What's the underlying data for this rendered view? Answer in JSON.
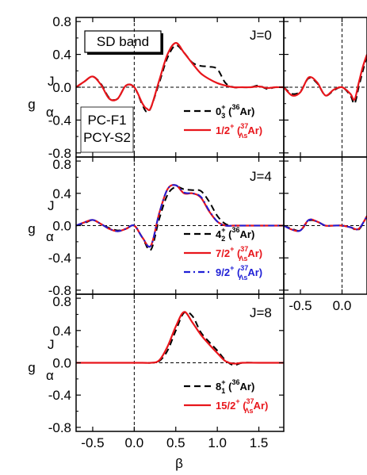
{
  "figure": {
    "ylabel_main": "g",
    "ylabel_sup": "J",
    "ylabel_sub": "α",
    "xlabel": "β",
    "colors": {
      "black": "#000000",
      "red": "#e8151b",
      "blue": "#1f1fd6"
    }
  },
  "left_ytick_labels": [
    "0.8",
    "0.4",
    "0.0",
    "-0.4",
    "-0.8"
  ],
  "bottom_xtick_labels": [
    "-0.5",
    "0.0",
    "0.5",
    "1.0",
    "1.5"
  ],
  "right_xtick_labels": [
    "-0.5",
    "0.0"
  ],
  "panels": {
    "J0": {
      "j_label": "J=0",
      "band_label": "SD band",
      "pc_label_1": "PC-F1",
      "pc_label_2": "PCY-S2",
      "legend": [
        {
          "state": "0",
          "sub": "3",
          "sup": "+",
          "nuc": "36",
          "hyp": "",
          "el": "Ar",
          "color": "black",
          "dash": "dashed"
        },
        {
          "state": "1/2",
          "sub": "",
          "sup": "+",
          "nuc": "37",
          "hyp": "Λs",
          "el": "Ar",
          "color": "red",
          "dash": "solid"
        }
      ]
    },
    "J4": {
      "j_label": "J=4",
      "legend": [
        {
          "state": "4",
          "sub": "2",
          "sup": "+",
          "nuc": "36",
          "hyp": "",
          "el": "Ar",
          "color": "black",
          "dash": "dashed"
        },
        {
          "state": "7/2",
          "sub": "",
          "sup": "+",
          "nuc": "37",
          "hyp": "Λs",
          "el": "Ar",
          "color": "red",
          "dash": "solid"
        },
        {
          "state": "9/2",
          "sub": "",
          "sup": "+",
          "nuc": "37",
          "hyp": "Λs",
          "el": "Ar",
          "color": "blue",
          "dash": "dashdot"
        }
      ]
    },
    "J8": {
      "j_label": "J=8",
      "legend": [
        {
          "state": "8",
          "sub": "1",
          "sup": "+",
          "nuc": "36",
          "hyp": "",
          "el": "Ar",
          "color": "black",
          "dash": "dashed"
        },
        {
          "state": "15/2",
          "sub": "",
          "sup": "+",
          "nuc": "37",
          "hyp": "Λs",
          "el": "Ar",
          "color": "red",
          "dash": "solid"
        }
      ]
    }
  },
  "chart_data": [
    {
      "type": "line",
      "panel": "J=0",
      "xlabel": "β",
      "ylabel": "g^J_α",
      "xlim": [
        -0.7,
        1.8
      ],
      "ylim": [
        -0.85,
        0.85
      ],
      "series": [
        {
          "name": "0_3^+ (36Ar)",
          "color": "#000000",
          "dash": "dashed",
          "x": [
            -0.7,
            -0.6,
            -0.5,
            -0.4,
            -0.3,
            -0.2,
            -0.1,
            0.0,
            0.1,
            0.15,
            0.2,
            0.3,
            0.4,
            0.5,
            0.6,
            0.7,
            0.8,
            0.9,
            1.0,
            1.1,
            1.2,
            1.3,
            1.4,
            1.5,
            1.6,
            1.7,
            1.8
          ],
          "y": [
            0.0,
            0.07,
            0.13,
            0.04,
            -0.13,
            -0.14,
            0.02,
            0.0,
            -0.22,
            -0.3,
            -0.25,
            0.05,
            0.36,
            0.51,
            0.42,
            0.3,
            0.26,
            0.25,
            0.22,
            0.05,
            0.0,
            0.0,
            0.0,
            0.02,
            -0.02,
            0.0,
            0.0
          ]
        },
        {
          "name": "1/2^+ (37ΛsAr)",
          "color": "#e8151b",
          "dash": "solid",
          "x": [
            -0.7,
            -0.6,
            -0.5,
            -0.4,
            -0.3,
            -0.2,
            -0.1,
            0.0,
            0.1,
            0.15,
            0.2,
            0.3,
            0.4,
            0.5,
            0.6,
            0.7,
            0.8,
            0.9,
            1.0,
            1.1,
            1.2,
            1.3,
            1.4,
            1.5,
            1.6,
            1.7,
            1.8
          ],
          "y": [
            0.0,
            0.07,
            0.13,
            0.03,
            -0.14,
            -0.14,
            0.02,
            0.0,
            -0.2,
            -0.26,
            -0.25,
            0.08,
            0.4,
            0.54,
            0.42,
            0.29,
            0.17,
            0.1,
            0.05,
            0.02,
            0.0,
            0.0,
            0.0,
            0.01,
            -0.01,
            0.0,
            0.0
          ]
        }
      ]
    },
    {
      "type": "line",
      "panel": "J=4",
      "xlabel": "β",
      "ylabel": "g^J_α",
      "xlim": [
        -0.7,
        1.8
      ],
      "ylim": [
        -0.85,
        0.85
      ],
      "series": [
        {
          "name": "4_2^+ (36Ar)",
          "color": "#000000",
          "dash": "dashed",
          "x": [
            -0.7,
            -0.6,
            -0.5,
            -0.4,
            -0.3,
            -0.2,
            -0.1,
            0.0,
            0.1,
            0.2,
            0.3,
            0.4,
            0.5,
            0.6,
            0.7,
            0.8,
            0.9,
            1.0,
            1.1,
            1.2,
            1.3,
            1.4,
            1.5,
            1.6,
            1.7,
            1.8
          ],
          "y": [
            0.0,
            0.03,
            0.07,
            0.02,
            -0.03,
            -0.06,
            -0.04,
            0.0,
            -0.15,
            -0.3,
            0.08,
            0.38,
            0.48,
            0.45,
            0.44,
            0.43,
            0.3,
            0.12,
            0.02,
            0.0,
            0.0,
            0.0,
            0.0,
            0.0,
            0.0,
            0.0
          ]
        },
        {
          "name": "7/2^+ (37ΛsAr)",
          "color": "#e8151b",
          "dash": "solid",
          "x": [
            -0.7,
            -0.6,
            -0.5,
            -0.4,
            -0.3,
            -0.2,
            -0.1,
            0.0,
            0.1,
            0.2,
            0.3,
            0.4,
            0.5,
            0.6,
            0.7,
            0.8,
            0.9,
            1.0,
            1.1,
            1.2,
            1.3,
            1.4,
            1.5,
            1.6,
            1.7,
            1.8
          ],
          "y": [
            0.0,
            0.04,
            0.07,
            0.02,
            -0.04,
            -0.07,
            -0.04,
            0.0,
            -0.15,
            -0.25,
            0.15,
            0.45,
            0.5,
            0.4,
            0.4,
            0.35,
            0.18,
            0.05,
            0.0,
            0.0,
            0.0,
            0.0,
            0.0,
            0.0,
            0.0,
            0.0
          ]
        },
        {
          "name": "9/2^+ (37ΛsAr)",
          "color": "#1f1fd6",
          "dash": "dashdot",
          "x": [
            -0.7,
            -0.6,
            -0.5,
            -0.4,
            -0.3,
            -0.2,
            -0.1,
            0.0,
            0.1,
            0.2,
            0.3,
            0.4,
            0.5,
            0.6,
            0.7,
            0.8,
            0.9,
            1.0,
            1.1,
            1.2,
            1.3,
            1.4,
            1.5,
            1.6,
            1.7,
            1.8
          ],
          "y": [
            0.0,
            0.04,
            0.07,
            0.02,
            -0.04,
            -0.07,
            -0.04,
            0.0,
            -0.15,
            -0.25,
            0.15,
            0.45,
            0.5,
            0.41,
            0.4,
            0.36,
            0.19,
            0.05,
            0.0,
            0.0,
            0.0,
            0.0,
            0.0,
            0.0,
            0.0,
            0.0
          ]
        }
      ]
    },
    {
      "type": "line",
      "panel": "J=8",
      "xlabel": "β",
      "ylabel": "g^J_α",
      "xlim": [
        -0.7,
        1.8
      ],
      "ylim": [
        -0.85,
        0.85
      ],
      "series": [
        {
          "name": "8_1^+ (36Ar)",
          "color": "#000000",
          "dash": "dashed",
          "x": [
            -0.7,
            -0.5,
            -0.3,
            -0.1,
            0.1,
            0.2,
            0.3,
            0.4,
            0.5,
            0.6,
            0.7,
            0.8,
            0.9,
            1.0,
            1.1,
            1.2,
            1.3,
            1.5,
            1.8
          ],
          "y": [
            0.0,
            0.0,
            0.0,
            0.0,
            0.0,
            0.0,
            0.02,
            0.15,
            0.4,
            0.62,
            0.58,
            0.38,
            0.26,
            0.15,
            0.03,
            -0.03,
            0.0,
            0.0,
            0.0
          ]
        },
        {
          "name": "15/2^+ (37ΛsAr)",
          "color": "#e8151b",
          "dash": "solid",
          "x": [
            -0.7,
            -0.5,
            -0.3,
            -0.1,
            0.1,
            0.2,
            0.3,
            0.4,
            0.5,
            0.6,
            0.7,
            0.8,
            0.9,
            1.0,
            1.1,
            1.2,
            1.3,
            1.5,
            1.8
          ],
          "y": [
            0.0,
            0.0,
            0.0,
            0.0,
            0.0,
            0.0,
            0.03,
            0.2,
            0.45,
            0.63,
            0.5,
            0.35,
            0.23,
            0.12,
            0.02,
            -0.01,
            0.0,
            0.0,
            0.0
          ]
        }
      ]
    },
    {
      "type": "line",
      "panel": "J=0 (right)",
      "xlim": [
        -0.7,
        0.3
      ],
      "ylim": [
        -0.85,
        0.85
      ],
      "series": [
        {
          "name": "0_3^+ (36Ar)",
          "color": "#000000",
          "dash": "dashed",
          "x": [
            -0.7,
            -0.6,
            -0.5,
            -0.4,
            -0.3,
            -0.2,
            -0.1,
            0.0,
            0.1,
            0.15,
            0.2,
            0.25,
            0.3
          ],
          "y": [
            0.0,
            -0.08,
            -0.05,
            0.11,
            0.05,
            -0.1,
            -0.04,
            0.0,
            -0.1,
            -0.2,
            0.0,
            0.2,
            0.38
          ]
        },
        {
          "name": "1/2^+ (37ΛsAr)",
          "color": "#e8151b",
          "dash": "solid",
          "x": [
            -0.7,
            -0.6,
            -0.5,
            -0.4,
            -0.3,
            -0.2,
            -0.1,
            0.0,
            0.1,
            0.15,
            0.2,
            0.25,
            0.3
          ],
          "y": [
            0.0,
            -0.1,
            -0.06,
            0.12,
            0.06,
            -0.1,
            -0.03,
            0.0,
            -0.08,
            -0.15,
            0.05,
            0.25,
            0.4
          ]
        }
      ]
    },
    {
      "type": "line",
      "panel": "J=4 (right)",
      "xlim": [
        -0.7,
        0.3
      ],
      "ylim": [
        -0.85,
        0.85
      ],
      "series": [
        {
          "name": "4_2^+ (36Ar)",
          "color": "#000000",
          "dash": "dashed",
          "x": [
            -0.7,
            -0.6,
            -0.5,
            -0.4,
            -0.3,
            -0.2,
            -0.1,
            0.0,
            0.1,
            0.2,
            0.3
          ],
          "y": [
            0.0,
            -0.04,
            -0.06,
            0.06,
            0.05,
            0.0,
            0.0,
            0.0,
            -0.02,
            -0.05,
            0.12
          ]
        },
        {
          "name": "7/2^+ (37ΛsAr)",
          "color": "#e8151b",
          "dash": "solid",
          "x": [
            -0.7,
            -0.6,
            -0.5,
            -0.4,
            -0.3,
            -0.2,
            -0.1,
            0.0,
            0.1,
            0.2,
            0.3
          ],
          "y": [
            0.0,
            -0.05,
            -0.06,
            0.07,
            0.05,
            0.0,
            0.0,
            0.0,
            -0.02,
            -0.04,
            0.12
          ]
        },
        {
          "name": "9/2^+ (37ΛsAr)",
          "color": "#1f1fd6",
          "dash": "dashdot",
          "x": [
            -0.7,
            -0.6,
            -0.5,
            -0.4,
            -0.3,
            -0.2,
            -0.1,
            0.0,
            0.1,
            0.2,
            0.3
          ],
          "y": [
            0.0,
            -0.05,
            -0.06,
            0.07,
            0.05,
            0.0,
            0.0,
            0.0,
            -0.02,
            -0.04,
            0.12
          ]
        }
      ]
    }
  ]
}
